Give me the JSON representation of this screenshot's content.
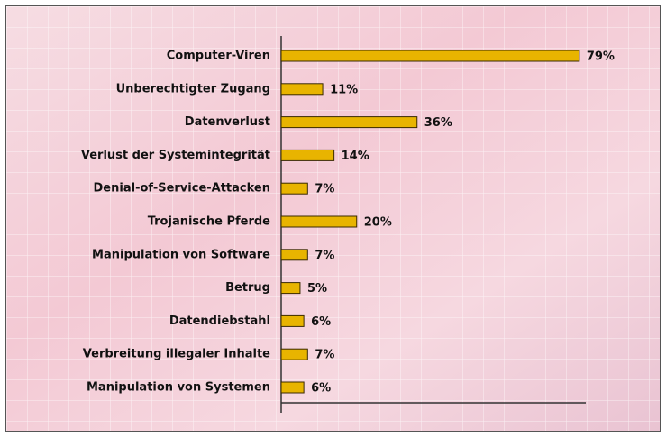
{
  "chart_data": {
    "type": "bar",
    "orientation": "horizontal",
    "categories": [
      "Computer-Viren",
      "Unberechtigter Zugang",
      "Datenverlust",
      "Verlust der Systemintegrität",
      "Denial-of-Service-Attacken",
      "Trojanische Pferde",
      "Manipulation von Software",
      "Betrug",
      "Datendiebstahl",
      "Verbreitung illegaler Inhalte",
      "Manipulation von Systemen"
    ],
    "values": [
      79,
      11,
      36,
      14,
      7,
      20,
      7,
      5,
      6,
      7,
      6
    ],
    "value_labels": [
      "79%",
      "11%",
      "36%",
      "14%",
      "7%",
      "20%",
      "7%",
      "5%",
      "6%",
      "7%",
      "6%"
    ],
    "color": "#e8b400",
    "xlim": [
      0,
      80
    ]
  }
}
